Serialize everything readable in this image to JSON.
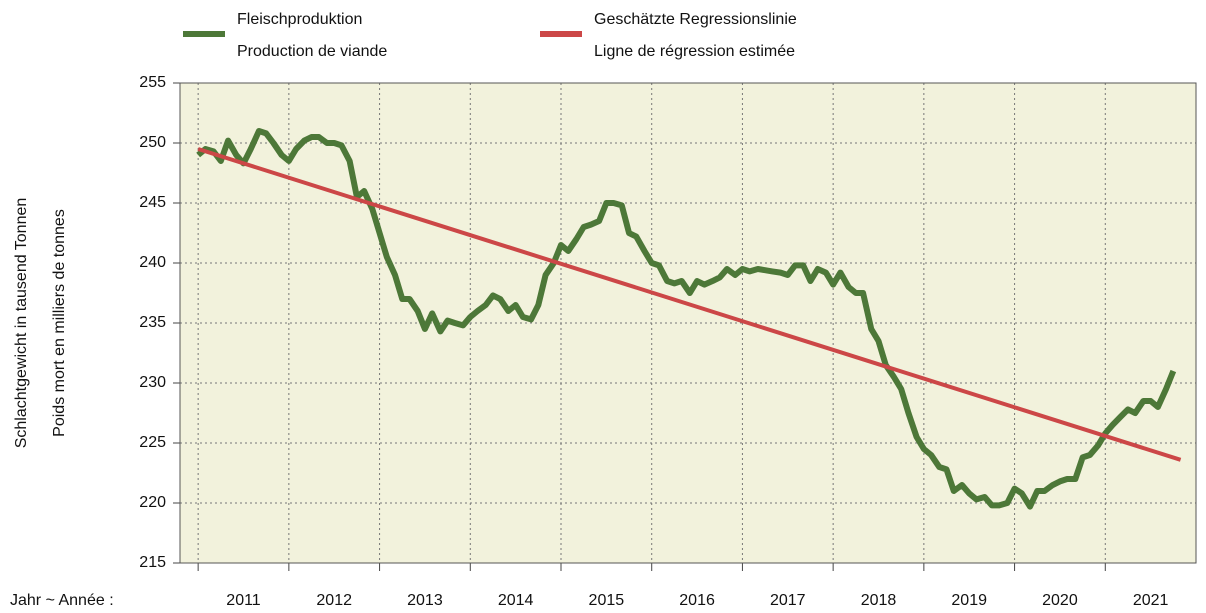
{
  "chart_data": {
    "type": "line",
    "ylabel": [
      "Schlachtgewicht in tausend Tonnen",
      "Poids mort en milliers de tonnes"
    ],
    "xlabel": "Jahr  ~  Année :",
    "legend": "top",
    "grid": true,
    "xlim": [
      2010.8,
      2022.0
    ],
    "xticks": [
      2011,
      2012,
      2013,
      2014,
      2015,
      2016,
      2017,
      2018,
      2019,
      2020,
      2021
    ],
    "ylim": [
      215,
      255
    ],
    "yticks": [
      215,
      220,
      225,
      230,
      235,
      240,
      245,
      250,
      255
    ],
    "series": [
      {
        "name": [
          "Fleischproduktion",
          "Production de viande"
        ],
        "color": "#4d7838",
        "width": 6,
        "x": [
          2011,
          2011.08,
          2011.17,
          2011.25,
          2011.33,
          2011.42,
          2011.5,
          2011.58,
          2011.67,
          2011.75,
          2011.83,
          2011.92,
          2012,
          2012.08,
          2012.17,
          2012.25,
          2012.33,
          2012.42,
          2012.5,
          2012.58,
          2012.67,
          2012.75,
          2012.83,
          2012.92,
          2013,
          2013.08,
          2013.17,
          2013.25,
          2013.33,
          2013.42,
          2013.5,
          2013.58,
          2013.67,
          2013.75,
          2013.83,
          2013.92,
          2014,
          2014.08,
          2014.17,
          2014.25,
          2014.33,
          2014.42,
          2014.5,
          2014.58,
          2014.67,
          2014.75,
          2014.83,
          2014.92,
          2015,
          2015.08,
          2015.17,
          2015.25,
          2015.33,
          2015.42,
          2015.5,
          2015.58,
          2015.67,
          2015.75,
          2015.83,
          2015.92,
          2016,
          2016.08,
          2016.17,
          2016.25,
          2016.33,
          2016.42,
          2016.5,
          2016.58,
          2016.67,
          2016.75,
          2016.83,
          2016.92,
          2017,
          2017.08,
          2017.17,
          2017.25,
          2017.33,
          2017.42,
          2017.5,
          2017.58,
          2017.67,
          2017.75,
          2017.83,
          2017.92,
          2018,
          2018.08,
          2018.17,
          2018.25,
          2018.33,
          2018.42,
          2018.5,
          2018.58,
          2018.67,
          2018.75,
          2018.83,
          2018.92,
          2019,
          2019.08,
          2019.17,
          2019.25,
          2019.33,
          2019.42,
          2019.5,
          2019.58,
          2019.67,
          2019.75,
          2019.83,
          2019.92,
          2020,
          2020.08,
          2020.17,
          2020.25,
          2020.33,
          2020.42,
          2020.5,
          2020.58,
          2020.67,
          2020.75,
          2020.83,
          2020.92,
          2021,
          2021.08,
          2021.17,
          2021.25,
          2021.33,
          2021.42,
          2021.5,
          2021.58,
          2021.67,
          2021.75
        ],
        "values": [
          249,
          249.5,
          249.3,
          248.5,
          250.2,
          249,
          248.3,
          249.5,
          251,
          250.8,
          250,
          249,
          248.5,
          249.5,
          250.2,
          250.5,
          250.5,
          250,
          250,
          249.8,
          248.5,
          245.5,
          246,
          244.5,
          242.5,
          240.5,
          239,
          237,
          237,
          236,
          234.5,
          235.8,
          234.3,
          235.2,
          235,
          234.8,
          235.5,
          236,
          236.5,
          237.3,
          237,
          236,
          236.5,
          235.5,
          235.3,
          236.5,
          239,
          240,
          241.5,
          241,
          242,
          243,
          243.2,
          243.5,
          245,
          245,
          244.8,
          242.5,
          242.2,
          241,
          240,
          239.8,
          238.5,
          238.3,
          238.5,
          237.5,
          238.5,
          238.2,
          238.5,
          238.8,
          239.5,
          239,
          239.5,
          239.3,
          239.5,
          239.4,
          239.3,
          239.2,
          239,
          239.8,
          239.8,
          238.5,
          239.5,
          239.2,
          238.2,
          239.2,
          238,
          237.5,
          237.5,
          234.5,
          233.5,
          231.5,
          230.5,
          229.5,
          227.5,
          225.5,
          224.5,
          224,
          223,
          222.8,
          221,
          221.5,
          220.8,
          220.3,
          220.5,
          219.8,
          219.8,
          220,
          221.2,
          220.8,
          219.7,
          221,
          221,
          221.5,
          221.8,
          222,
          222,
          223.8,
          224,
          224.8,
          225.8,
          226.5,
          227.2,
          227.8,
          227.5,
          228.5,
          228.5,
          228,
          229.5,
          231
        ]
      },
      {
        "name": [
          "Geschätzte Regressionslinie",
          "Ligne de régression estimée"
        ],
        "color": "#cc4747",
        "width": 4,
        "x": [
          2011,
          2021.83
        ],
        "values": [
          249.5,
          223.6
        ]
      }
    ]
  }
}
